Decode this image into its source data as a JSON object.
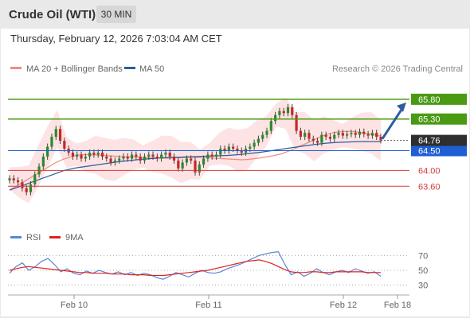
{
  "header": {
    "title": "Crude Oil (WTI)",
    "timeframe": "30 MIN",
    "datetime": "Thursday, February 12, 2026 7:03:04 AM CET"
  },
  "legend": {
    "ma20": "MA 20 + Bollinger Bands",
    "ma50": "MA 50",
    "credit": "Research © 2026 Trading Central",
    "ma20_color": "#f28b82",
    "ma50_color": "#2e5c9e"
  },
  "rsi_legend": {
    "rsi": "RSI",
    "ma9": "9MA",
    "rsi_color": "#5b86d6",
    "ma9_color": "#e02020"
  },
  "chart_data": [
    {
      "type": "candlestick",
      "title": "",
      "x_ticks": [
        "Feb 10",
        "Feb 11",
        "Feb 12",
        "Feb 18"
      ],
      "ylim": [
        62.6,
        66.3
      ],
      "current_price": {
        "label": "64.76",
        "value": 64.76
      },
      "levels": [
        {
          "label": "65.80",
          "value": 65.8,
          "color": "#4a9a14",
          "kind": "resistance"
        },
        {
          "label": "65.30",
          "value": 65.3,
          "color": "#4a9a14",
          "kind": "resistance"
        },
        {
          "label": "64.50",
          "value": 64.5,
          "color": "#1f5fd6",
          "kind": "pivot"
        },
        {
          "label": "64.00",
          "value": 64.0,
          "color": "#d23b3b",
          "kind": "support"
        },
        {
          "label": "63.60",
          "value": 63.6,
          "color": "#d23b3b",
          "kind": "support"
        }
      ],
      "close": [
        63.8,
        63.75,
        63.7,
        63.55,
        63.45,
        63.65,
        63.9,
        64.1,
        64.35,
        64.6,
        64.85,
        65.05,
        64.75,
        64.55,
        64.45,
        64.35,
        64.4,
        64.3,
        64.35,
        64.45,
        64.4,
        64.45,
        64.35,
        64.3,
        64.2,
        64.25,
        64.3,
        64.35,
        64.3,
        64.4,
        64.35,
        64.25,
        64.35,
        64.4,
        64.35,
        64.3,
        64.4,
        64.45,
        64.35,
        64.25,
        64.05,
        64.2,
        64.3,
        64.25,
        63.95,
        64.15,
        64.3,
        64.4,
        64.35,
        64.4,
        64.55,
        64.5,
        64.6,
        64.55,
        64.5,
        64.45,
        64.55,
        64.6,
        64.7,
        64.8,
        64.9,
        65.0,
        65.25,
        65.4,
        65.5,
        65.45,
        65.6,
        65.4,
        65.0,
        64.85,
        64.95,
        64.8,
        64.75,
        64.7,
        64.9,
        64.85,
        64.8,
        64.9,
        64.95,
        64.88,
        64.92,
        64.95,
        64.9,
        64.98,
        64.92,
        64.88,
        64.95,
        64.85,
        64.76
      ],
      "ma20": [
        63.5,
        63.6,
        63.7,
        63.8,
        63.9,
        64.0,
        64.1,
        64.2,
        64.28,
        64.33,
        64.38,
        64.4,
        64.4,
        64.39,
        64.38,
        64.37,
        64.36,
        64.35,
        64.34,
        64.34,
        64.33,
        64.32,
        64.32,
        64.31,
        64.31,
        64.32,
        64.32,
        64.33,
        64.33,
        64.33,
        64.32,
        64.31,
        64.3,
        64.29,
        64.28,
        64.27,
        64.28,
        64.3,
        64.32,
        64.35,
        64.38,
        64.42,
        64.48,
        64.55,
        64.63,
        64.7,
        64.78,
        64.86,
        64.92,
        64.96,
        64.98,
        64.99,
        64.98,
        64.96,
        64.93,
        64.9,
        64.87
      ],
      "ma50": [
        63.5,
        63.6,
        63.7,
        63.8,
        63.9,
        64.0,
        64.06,
        64.1,
        64.14,
        64.18,
        64.22,
        64.25,
        64.28,
        64.3,
        64.32,
        64.33,
        64.34,
        64.35,
        64.36,
        64.37,
        64.38,
        64.4,
        64.43,
        64.46,
        64.5,
        64.54,
        64.58,
        64.62,
        64.66,
        64.69,
        64.71,
        64.72,
        64.73,
        64.73,
        64.73
      ]
    },
    {
      "type": "line",
      "title": "RSI",
      "ylim": [
        20,
        80
      ],
      "y_ticks": [
        "70",
        "50",
        "30"
      ],
      "series": [
        {
          "name": "RSI",
          "values": [
            46,
            55,
            60,
            50,
            55,
            62,
            66,
            58,
            48,
            52,
            46,
            44,
            49,
            46,
            50,
            47,
            45,
            48,
            44,
            47,
            43,
            46,
            44,
            40,
            38,
            42,
            47,
            44,
            41,
            46,
            50,
            47,
            46,
            48,
            52,
            55,
            58,
            62,
            66,
            70,
            72,
            74,
            75,
            58,
            44,
            48,
            42,
            46,
            52,
            47,
            44,
            48,
            50,
            47,
            52,
            49,
            46,
            48,
            42
          ]
        },
        {
          "name": "9MA",
          "values": [
            50,
            52,
            54,
            55,
            54,
            53,
            52,
            51,
            50,
            49,
            48,
            47,
            47,
            46,
            46,
            46,
            45,
            45,
            45,
            44,
            44,
            44,
            43,
            43,
            43,
            44,
            45,
            46,
            47,
            48,
            49,
            50,
            52,
            54,
            56,
            58,
            60,
            62,
            63,
            64,
            62,
            59,
            55,
            51,
            48,
            47,
            47,
            48,
            48,
            47,
            47,
            48,
            48,
            48,
            48,
            48,
            47,
            47,
            47
          ]
        }
      ]
    }
  ]
}
